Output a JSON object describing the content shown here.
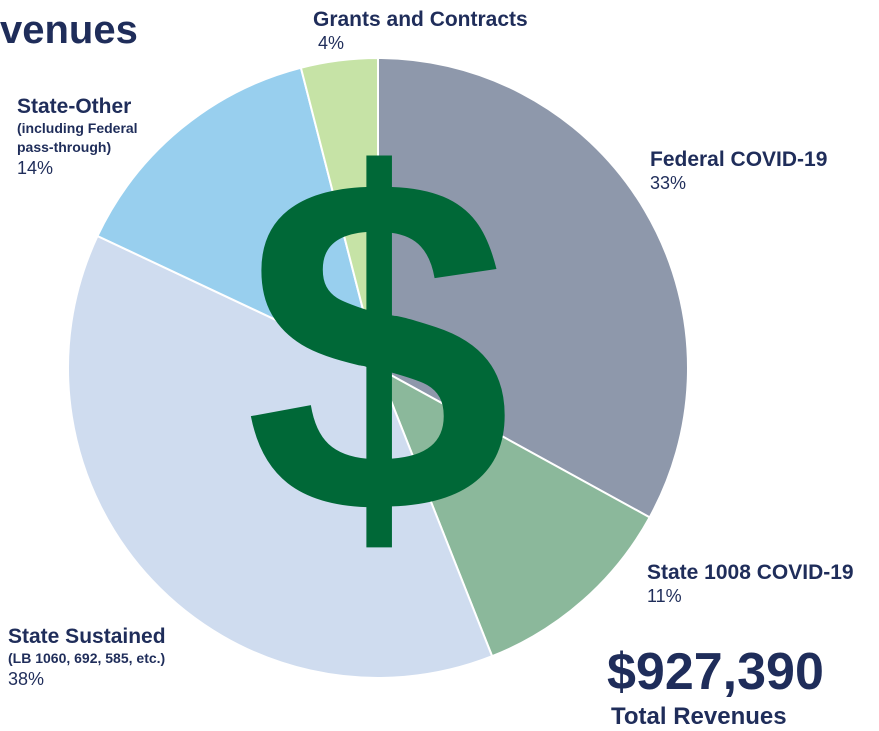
{
  "chart_data": {
    "type": "pie",
    "title": "venues",
    "categories": [
      "Federal COVID-19",
      "State 1008 COVID-19",
      "State Sustained",
      "State-Other",
      "Grants and Contracts"
    ],
    "category_notes": [
      null,
      null,
      "(LB 1060, 692, 585, etc.)",
      "(including Federal pass-through)",
      null
    ],
    "values": [
      33,
      11,
      38,
      14,
      4
    ],
    "value_labels": [
      "33%",
      "11%",
      "38%",
      "14%",
      "4%"
    ],
    "colors": [
      "#8e98ab",
      "#8bb89b",
      "#cfdcef",
      "#98cfee",
      "#c6e3a6"
    ],
    "icon": "$",
    "annotations": [
      "$927,390",
      "Total Revenues"
    ]
  }
}
